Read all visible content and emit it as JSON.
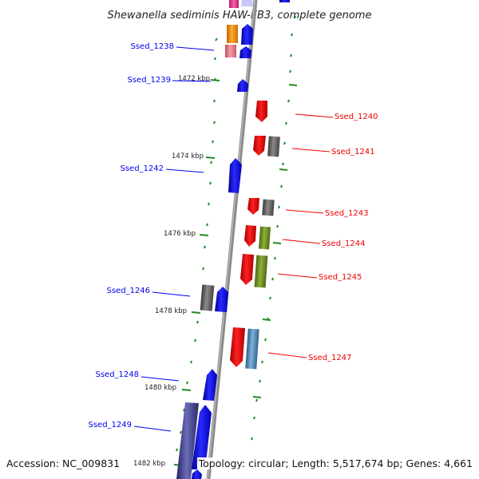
{
  "title": "Shewanella sediminis HAW-EB3, complete genome",
  "footer": {
    "accession": "Accession: NC_009831",
    "topology": "Topology: circular; Length: 5,517,674 bp; Genes: 4,661"
  },
  "scale_labels": [
    "1472 kbp",
    "1474 kbp",
    "1476 kbp",
    "1478 kbp",
    "1480 kbp",
    "1482 kbp"
  ],
  "gene_labels": {
    "left": [
      "Ssed_1238",
      "Ssed_1239",
      "Ssed_1242",
      "Ssed_1246",
      "Ssed_1248",
      "Ssed_1249"
    ],
    "right": [
      "Ssed_1240",
      "Ssed_1241",
      "Ssed_1243",
      "Ssed_1244",
      "Ssed_1245",
      "Ssed_1247"
    ]
  },
  "colors": {
    "reverse_strand_gene": "#0000ee",
    "forward_strand_gene": "#ee0000",
    "cog_gray": "#666666",
    "cog_olive": "#6b8e23",
    "cog_steelblue": "#4682b4",
    "cog_orange": "#f28c00",
    "cog_pink": "#e0707a",
    "cog_navy": "#3a3a8c",
    "backbone": "#888888",
    "tick": "#228b22"
  }
}
